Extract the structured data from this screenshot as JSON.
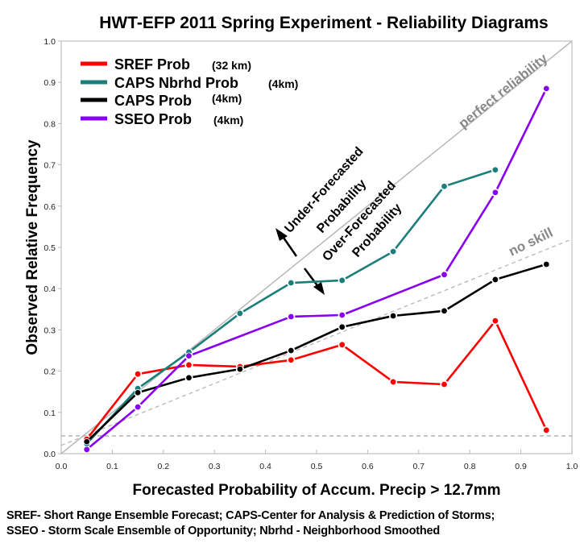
{
  "chart_data": {
    "type": "line",
    "title": "HWT-EFP 2011 Spring Experiment - Reliability Diagrams",
    "xlabel": "Forecasted Probability of Accum. Precip > 12.7mm",
    "ylabel": "Observed Relative Frequency",
    "xlim": [
      0.0,
      1.0
    ],
    "ylim": [
      0.0,
      1.0
    ],
    "xticks": [
      "0.0",
      "0.1",
      "0.2",
      "0.3",
      "0.4",
      "0.5",
      "0.6",
      "0.7",
      "0.8",
      "0.9",
      "1.0"
    ],
    "yticks": [
      "0.0",
      "0.1",
      "0.2",
      "0.3",
      "0.4",
      "0.5",
      "0.6",
      "0.7",
      "0.8",
      "0.9",
      "1.0"
    ],
    "grid": false,
    "legend_position": "top-left",
    "x": [
      0.05,
      0.15,
      0.25,
      0.35,
      0.45,
      0.55,
      0.65,
      0.75,
      0.85,
      0.95
    ],
    "series": [
      {
        "name": "SREF Prob",
        "detail": "(32 km)",
        "color": "#ff0000",
        "values": [
          0.035,
          0.193,
          0.215,
          0.211,
          0.227,
          0.264,
          0.174,
          0.168,
          0.322,
          0.057
        ]
      },
      {
        "name": "CAPS Nbrhd Prob",
        "detail": "(4km)",
        "color": "#1a7f7a",
        "values": [
          0.024,
          0.158,
          0.246,
          0.34,
          0.414,
          0.42,
          0.49,
          0.648,
          0.688,
          null
        ]
      },
      {
        "name": "CAPS Prob",
        "detail": "(4km)",
        "color": "#000000",
        "values": [
          0.029,
          0.148,
          0.184,
          0.205,
          0.25,
          0.307,
          0.334,
          0.346,
          0.422,
          0.459
        ]
      },
      {
        "name": "SSEO Prob",
        "detail": "(4km)",
        "color": "#8800ee",
        "values": [
          0.01,
          0.113,
          0.237,
          null,
          0.332,
          0.336,
          null,
          0.434,
          0.633,
          0.885
        ]
      }
    ],
    "reference_lines": {
      "perfect_reliability": {
        "label": "perfect reliability",
        "from": [
          0.0,
          0.0
        ],
        "to": [
          1.0,
          1.0
        ],
        "color": "#bbbbbb"
      },
      "no_skill": {
        "label": "no skill",
        "from": [
          0.0,
          0.02
        ],
        "to": [
          1.0,
          0.52
        ],
        "color": "#bbbbbb"
      },
      "climatology": {
        "label": "",
        "y": 0.043,
        "color": "#aaaaaa"
      }
    },
    "annotations": {
      "under_line1": "Under-Forecasted",
      "under_line2": "Probability",
      "over_line1": "Over-Forecasted",
      "over_line2": "Probability"
    }
  },
  "caption": {
    "line1": "SREF- Short Range Ensemble Forecast; CAPS-Center for Analysis & Prediction of Storms;",
    "line2": "SSEO - Storm Scale Ensemble of Opportunity; Nbrhd - Neighborhood Smoothed"
  }
}
